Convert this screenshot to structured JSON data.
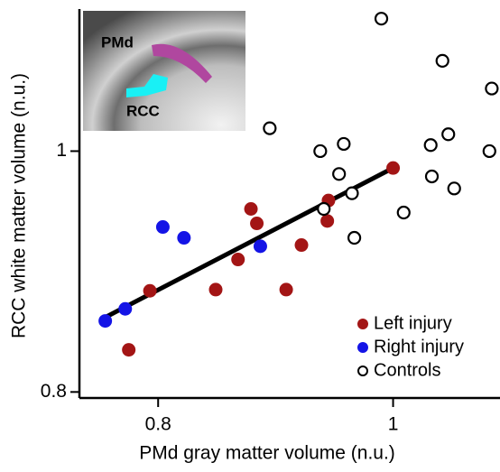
{
  "chart_data": {
    "type": "scatter",
    "x_label": "PMd gray matter volume (n.u.)",
    "y_label": "RCC white matter volume (n.u.)",
    "xlim": [
      0.733,
      1.091
    ],
    "ylim": [
      0.795,
      1.118
    ],
    "xticks": [
      0.8,
      1
    ],
    "yticks": [
      0.8,
      1
    ],
    "legend": "lower right",
    "series": [
      {
        "name": "Left injury",
        "color": "#a31515",
        "filled": true,
        "x": [
          1.0,
          0.945,
          0.944,
          0.879,
          0.884,
          0.922,
          0.868,
          0.793,
          0.849,
          0.909,
          0.775
        ],
        "values": [
          0.986,
          0.959,
          0.942,
          0.952,
          0.94,
          0.922,
          0.91,
          0.884,
          0.885,
          0.885,
          0.835
        ]
      },
      {
        "name": "Right injury",
        "color": "#1414e6",
        "filled": true,
        "x": [
          0.804,
          0.822,
          0.887,
          0.772,
          0.755
        ],
        "values": [
          0.937,
          0.928,
          0.921,
          0.869,
          0.859
        ]
      },
      {
        "name": "Controls",
        "color": "#000000",
        "filled": false,
        "x": [
          0.99,
          1.042,
          1.084,
          0.895,
          0.938,
          0.958,
          0.954,
          1.032,
          1.047,
          1.082,
          1.033,
          1.052,
          0.965,
          0.941,
          1.009,
          0.967
        ],
        "values": [
          1.11,
          1.075,
          1.052,
          1.019,
          1.0,
          1.006,
          0.981,
          1.005,
          1.014,
          1.0,
          0.979,
          0.969,
          0.965,
          0.952,
          0.949,
          0.928
        ]
      }
    ],
    "fit_line": {
      "color": "#000000",
      "x": [
        0.755,
        1.0
      ],
      "values": [
        0.862,
        0.986
      ]
    },
    "inset_labels": [
      "PMd",
      "RCC"
    ]
  }
}
